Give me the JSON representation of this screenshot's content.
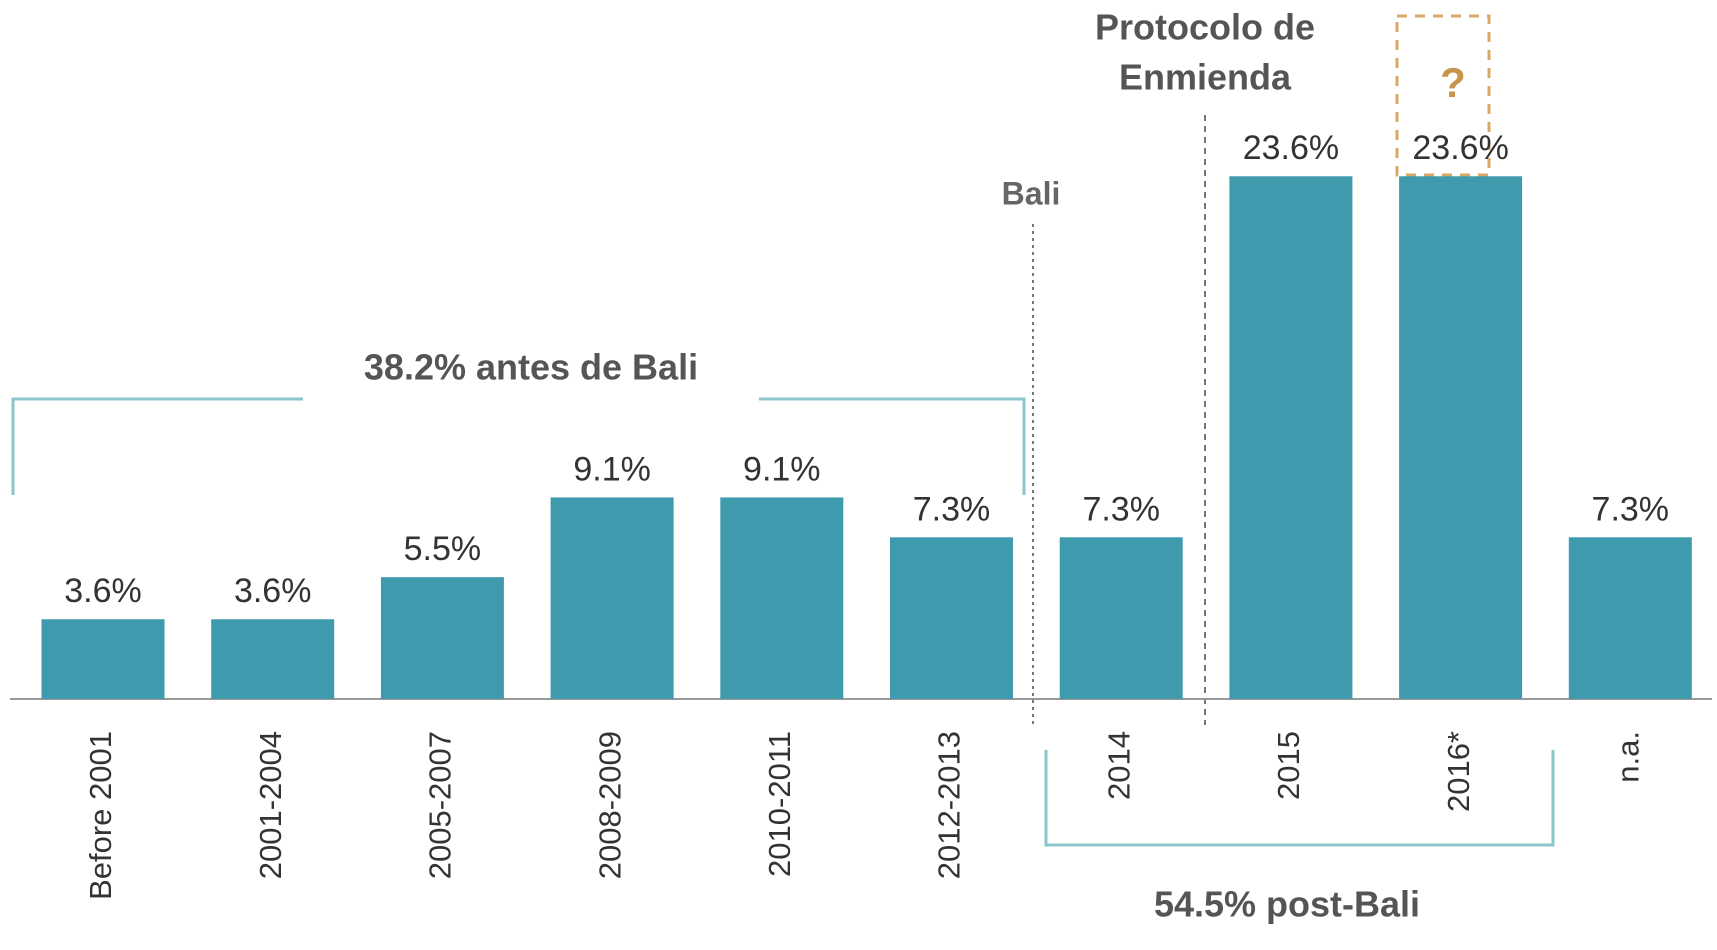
{
  "chart_data": {
    "type": "bar",
    "categories": [
      "Before 2001",
      "2001-2004",
      "2005-2007",
      "2008-2009",
      "2010-2011",
      "2012-2013",
      "2014",
      "2015",
      "2016*",
      "n.a."
    ],
    "values": [
      3.6,
      3.6,
      5.5,
      9.1,
      9.1,
      7.3,
      7.3,
      23.6,
      23.6,
      7.3
    ],
    "value_labels": [
      "3.6%",
      "3.6%",
      "5.5%",
      "9.1%",
      "9.1%",
      "7.3%",
      "7.3%",
      "23.6%",
      "23.6%",
      "7.3%"
    ],
    "color": "#3f9aae",
    "annotations": {
      "protocol": [
        "Protocolo de",
        "Enmienda"
      ],
      "bali": "Bali",
      "unknown": "?",
      "before_bali": "38.2% antes de Bali",
      "post_bali": "54.5% post-Bali"
    }
  }
}
